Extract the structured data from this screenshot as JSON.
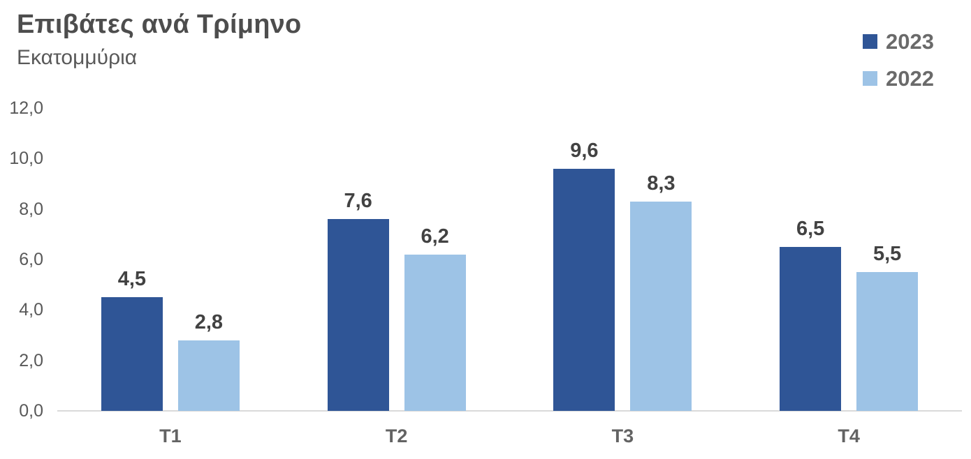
{
  "chart_data": {
    "type": "bar",
    "title": "Επιβάτες ανά Τρίμηνο",
    "subtitle": "Εκατομμύρια",
    "categories": [
      "Τ1",
      "Τ2",
      "Τ3",
      "Τ4"
    ],
    "series": [
      {
        "name": "2023",
        "color": "#2F5596",
        "values": [
          4.5,
          7.6,
          9.6,
          6.5
        ],
        "labels": [
          "4,5",
          "7,6",
          "9,6",
          "6,5"
        ]
      },
      {
        "name": "2022",
        "color": "#9DC3E6",
        "values": [
          2.8,
          6.2,
          8.3,
          5.5
        ],
        "labels": [
          "2,8",
          "6,2",
          "8,3",
          "5,5"
        ]
      }
    ],
    "ylim": [
      0,
      12
    ],
    "yticks": {
      "values": [
        0,
        2,
        4,
        6,
        8,
        10,
        12
      ],
      "labels": [
        "0,0",
        "2,0",
        "4,0",
        "6,0",
        "8,0",
        "10,0",
        "12,0"
      ]
    },
    "grid": false,
    "legend_position": "top-right",
    "decimal_separator": ","
  },
  "colors": {
    "series_2023": "#2F5596",
    "series_2022": "#9DC3E6",
    "title_text": "#4d4d4d",
    "subtitle_text": "#595959",
    "axis_tick_text": "#595959",
    "category_text": "#636363",
    "value_label_text": "#424242",
    "axis_line": "#d9d9d9",
    "background": "#ffffff"
  }
}
